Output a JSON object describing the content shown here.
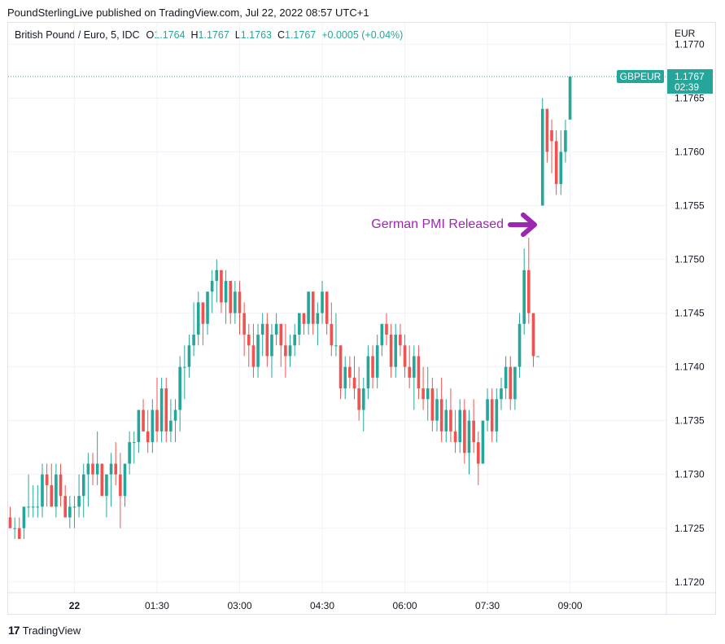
{
  "header": {
    "published": "PoundSterlingLive published on TradingView.com, Jul 22, 2022 08:57 UTC+1"
  },
  "legend": {
    "symbol": "British Pound / Euro, 5, IDC",
    "open_label": "O",
    "open": "1.1764",
    "high_label": "H",
    "high": "1.1767",
    "low_label": "L",
    "low": "1.1763",
    "close_label": "C",
    "close": "1.1767",
    "change": "+0.0005 (+0.04%)"
  },
  "currency": "EUR",
  "footer": {
    "brand": "TradingView"
  },
  "colors": {
    "up": "#26a69a",
    "down": "#ef5350",
    "annotation": "#9c27b0",
    "grid": "#f0f3fa"
  },
  "chart_data": {
    "type": "candlestick",
    "ylim": [
      1.1719,
      1.1772
    ],
    "yticks": [
      "1.1720",
      "1.1725",
      "1.1730",
      "1.1735",
      "1.1740",
      "1.1745",
      "1.1750",
      "1.1755",
      "1.1760",
      "1.1765",
      "1.1770"
    ],
    "xticks": [
      {
        "label": "22",
        "bar": 14
      },
      {
        "label": "01:30",
        "bar": 32
      },
      {
        "label": "03:00",
        "bar": 50
      },
      {
        "label": "04:30",
        "bar": 68
      },
      {
        "label": "06:00",
        "bar": 86
      },
      {
        "label": "07:30",
        "bar": 104
      },
      {
        "label": "09:00",
        "bar": 122
      }
    ],
    "last_price": {
      "symbol": "GBPEUR",
      "price": "1.1767",
      "countdown": "02:39",
      "value": 1.1767
    },
    "annotation": {
      "text": "German PMI Released"
    },
    "ohlc": [
      [
        1.1726,
        1.1727,
        1.1725,
        1.1725
      ],
      [
        1.1725,
        1.1726,
        1.1724,
        1.1725
      ],
      [
        1.1725,
        1.1726,
        1.1724,
        1.1724
      ],
      [
        1.1725,
        1.1727,
        1.1724,
        1.1727
      ],
      [
        1.1727,
        1.173,
        1.1726,
        1.1727
      ],
      [
        1.1727,
        1.1729,
        1.1726,
        1.1727
      ],
      [
        1.1727,
        1.1729,
        1.1726,
        1.1727
      ],
      [
        1.1727,
        1.1731,
        1.1726,
        1.173
      ],
      [
        1.173,
        1.1731,
        1.1727,
        1.1729
      ],
      [
        1.1729,
        1.1731,
        1.1727,
        1.1727
      ],
      [
        1.1727,
        1.1731,
        1.1726,
        1.173
      ],
      [
        1.173,
        1.1731,
        1.1727,
        1.1728
      ],
      [
        1.1728,
        1.1729,
        1.1726,
        1.1726
      ],
      [
        1.1726,
        1.1728,
        1.1725,
        1.1727
      ],
      [
        1.1727,
        1.1728,
        1.1725,
        1.1727
      ],
      [
        1.1727,
        1.173,
        1.1726,
        1.1728
      ],
      [
        1.1728,
        1.1731,
        1.1726,
        1.173
      ],
      [
        1.173,
        1.1732,
        1.1727,
        1.1731
      ],
      [
        1.1731,
        1.1732,
        1.1729,
        1.173
      ],
      [
        1.173,
        1.1734,
        1.1729,
        1.1731
      ],
      [
        1.1731,
        1.1731,
        1.1728,
        1.1728
      ],
      [
        1.1728,
        1.173,
        1.1726,
        1.173
      ],
      [
        1.173,
        1.1732,
        1.1727,
        1.1731
      ],
      [
        1.1731,
        1.1733,
        1.1729,
        1.173
      ],
      [
        1.173,
        1.1732,
        1.1725,
        1.1728
      ],
      [
        1.1728,
        1.1731,
        1.1727,
        1.1731
      ],
      [
        1.1731,
        1.1734,
        1.173,
        1.1733
      ],
      [
        1.1733,
        1.1734,
        1.1731,
        1.1733
      ],
      [
        1.1733,
        1.1736,
        1.1732,
        1.1736
      ],
      [
        1.1736,
        1.1737,
        1.1734,
        1.1734
      ],
      [
        1.1734,
        1.1736,
        1.1732,
        1.1733
      ],
      [
        1.1733,
        1.1737,
        1.1732,
        1.1736
      ],
      [
        1.1736,
        1.1739,
        1.1733,
        1.1734
      ],
      [
        1.1734,
        1.1739,
        1.1733,
        1.1738
      ],
      [
        1.1738,
        1.1739,
        1.1733,
        1.1734
      ],
      [
        1.1734,
        1.1737,
        1.1733,
        1.1735
      ],
      [
        1.1735,
        1.1737,
        1.1733,
        1.1736
      ],
      [
        1.1736,
        1.1741,
        1.1734,
        1.174
      ],
      [
        1.174,
        1.1742,
        1.1737,
        1.174
      ],
      [
        1.174,
        1.1743,
        1.1739,
        1.1742
      ],
      [
        1.1742,
        1.1746,
        1.1741,
        1.1743
      ],
      [
        1.1743,
        1.1747,
        1.1742,
        1.1746
      ],
      [
        1.1746,
        1.1746,
        1.1742,
        1.1744
      ],
      [
        1.1744,
        1.1747,
        1.1743,
        1.1747
      ],
      [
        1.1747,
        1.1749,
        1.1745,
        1.1748
      ],
      [
        1.1748,
        1.175,
        1.1746,
        1.1749
      ],
      [
        1.1749,
        1.1749,
        1.1745,
        1.1746
      ],
      [
        1.1746,
        1.1749,
        1.1744,
        1.1748
      ],
      [
        1.1748,
        1.1748,
        1.1744,
        1.1745
      ],
      [
        1.1745,
        1.1748,
        1.1744,
        1.1747
      ],
      [
        1.1747,
        1.1748,
        1.1743,
        1.1745
      ],
      [
        1.1745,
        1.1746,
        1.1741,
        1.1743
      ],
      [
        1.1743,
        1.1744,
        1.174,
        1.1742
      ],
      [
        1.1742,
        1.1744,
        1.1739,
        1.174
      ],
      [
        1.174,
        1.1744,
        1.1739,
        1.1743
      ],
      [
        1.1743,
        1.1745,
        1.1741,
        1.1744
      ],
      [
        1.1744,
        1.1745,
        1.174,
        1.1741
      ],
      [
        1.1741,
        1.1744,
        1.1739,
        1.1743
      ],
      [
        1.1743,
        1.1745,
        1.1742,
        1.1744
      ],
      [
        1.1744,
        1.1744,
        1.174,
        1.1742
      ],
      [
        1.1742,
        1.1744,
        1.1739,
        1.1741
      ],
      [
        1.1741,
        1.1743,
        1.174,
        1.1742
      ],
      [
        1.1742,
        1.1744,
        1.1741,
        1.1743
      ],
      [
        1.1743,
        1.1745,
        1.1742,
        1.1745
      ],
      [
        1.1745,
        1.1745,
        1.1743,
        1.1744
      ],
      [
        1.1744,
        1.1747,
        1.1743,
        1.1747
      ],
      [
        1.1747,
        1.1747,
        1.1743,
        1.1744
      ],
      [
        1.1744,
        1.1746,
        1.1742,
        1.1745
      ],
      [
        1.1745,
        1.1748,
        1.1744,
        1.1747
      ],
      [
        1.1747,
        1.1747,
        1.1743,
        1.1744
      ],
      [
        1.1744,
        1.1746,
        1.1741,
        1.1742
      ],
      [
        1.1742,
        1.1745,
        1.1741,
        1.1742
      ],
      [
        1.1742,
        1.1742,
        1.1737,
        1.1738
      ],
      [
        1.1738,
        1.1741,
        1.1737,
        1.174
      ],
      [
        1.174,
        1.1741,
        1.1738,
        1.1739
      ],
      [
        1.1739,
        1.1741,
        1.1737,
        1.1738
      ],
      [
        1.1738,
        1.174,
        1.1735,
        1.1736
      ],
      [
        1.1736,
        1.1739,
        1.1734,
        1.1738
      ],
      [
        1.1738,
        1.1742,
        1.1737,
        1.1741
      ],
      [
        1.1741,
        1.1742,
        1.1738,
        1.1739
      ],
      [
        1.1739,
        1.1743,
        1.1738,
        1.1742
      ],
      [
        1.1742,
        1.1744,
        1.1741,
        1.1744
      ],
      [
        1.1744,
        1.1745,
        1.1742,
        1.1743
      ],
      [
        1.1743,
        1.1744,
        1.1739,
        1.174
      ],
      [
        1.174,
        1.1744,
        1.1739,
        1.1743
      ],
      [
        1.1743,
        1.1744,
        1.1741,
        1.1742
      ],
      [
        1.1742,
        1.1743,
        1.1739,
        1.174
      ],
      [
        1.174,
        1.1742,
        1.1738,
        1.1739
      ],
      [
        1.1739,
        1.1742,
        1.1736,
        1.1741
      ],
      [
        1.1741,
        1.1742,
        1.1737,
        1.1738
      ],
      [
        1.1738,
        1.174,
        1.1736,
        1.1737
      ],
      [
        1.1737,
        1.174,
        1.1735,
        1.1738
      ],
      [
        1.1738,
        1.1739,
        1.1734,
        1.1735
      ],
      [
        1.1735,
        1.1738,
        1.1734,
        1.1737
      ],
      [
        1.1737,
        1.1739,
        1.1733,
        1.1734
      ],
      [
        1.1734,
        1.1737,
        1.1733,
        1.1736
      ],
      [
        1.1736,
        1.1738,
        1.1733,
        1.1734
      ],
      [
        1.1734,
        1.1736,
        1.1732,
        1.1733
      ],
      [
        1.1733,
        1.1737,
        1.1732,
        1.1736
      ],
      [
        1.1736,
        1.1737,
        1.1731,
        1.1732
      ],
      [
        1.1732,
        1.1736,
        1.173,
        1.1735
      ],
      [
        1.1735,
        1.1737,
        1.1732,
        1.1733
      ],
      [
        1.1733,
        1.1734,
        1.1729,
        1.1731
      ],
      [
        1.1731,
        1.1735,
        1.1731,
        1.1735
      ],
      [
        1.1735,
        1.1738,
        1.1734,
        1.1737
      ],
      [
        1.1737,
        1.1738,
        1.1733,
        1.1734
      ],
      [
        1.1734,
        1.1738,
        1.1733,
        1.1737
      ],
      [
        1.1737,
        1.1739,
        1.1736,
        1.1738
      ],
      [
        1.1738,
        1.1741,
        1.1737,
        1.174
      ],
      [
        1.174,
        1.1741,
        1.1736,
        1.1737
      ],
      [
        1.1737,
        1.174,
        1.1736,
        1.174
      ],
      [
        1.174,
        1.1745,
        1.1739,
        1.1744
      ],
      [
        1.1744,
        1.1751,
        1.1743,
        1.1749
      ],
      [
        1.1749,
        1.1752,
        1.1744,
        1.1745
      ],
      [
        1.1745,
        1.1745,
        1.174,
        1.1741
      ],
      [
        1.1741,
        1.1741,
        1.1741,
        1.1741
      ],
      [
        1.1755,
        1.1765,
        1.1755,
        1.1764
      ],
      [
        1.1764,
        1.1764,
        1.1759,
        1.176
      ],
      [
        1.1762,
        1.1763,
        1.1758,
        1.1761
      ],
      [
        1.1761,
        1.1762,
        1.1756,
        1.1757
      ],
      [
        1.1757,
        1.1762,
        1.1756,
        1.176
      ],
      [
        1.176,
        1.1763,
        1.1759,
        1.1762
      ],
      [
        1.1763,
        1.1767,
        1.1763,
        1.1767
      ]
    ]
  }
}
